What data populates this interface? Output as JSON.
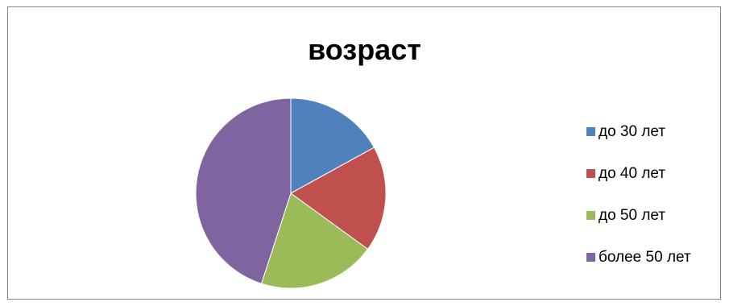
{
  "chart_data": {
    "type": "pie",
    "title": "возраст",
    "categories": [
      "до 30 лет",
      "до 40 лет",
      "до 50 лет",
      "более 50 лет"
    ],
    "values": [
      17,
      18,
      20,
      45
    ],
    "colors": [
      "#4F81BD",
      "#C0504D",
      "#9BBB59",
      "#8064A2"
    ],
    "legend_position": "right"
  }
}
